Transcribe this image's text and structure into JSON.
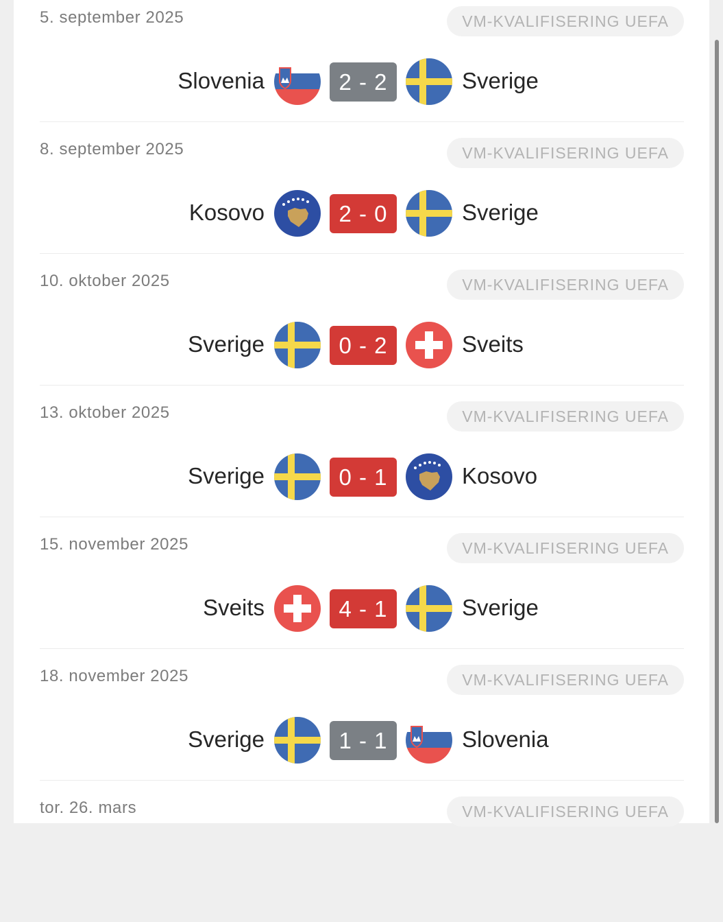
{
  "matches": [
    {
      "date": "5. september 2025",
      "competition": "VM-KVALIFISERING UEFA",
      "home": "Slovenia",
      "home_flag": "slovenia-flag-icon",
      "score": "2 - 2",
      "away": "Sverige",
      "away_flag": "sweden-flag-icon",
      "result_color": "#7b8085"
    },
    {
      "date": "8. september 2025",
      "competition": "VM-KVALIFISERING UEFA",
      "home": "Kosovo",
      "home_flag": "kosovo-flag-icon",
      "score": "2 - 0",
      "away": "Sverige",
      "away_flag": "sweden-flag-icon",
      "result_color": "#d33a36"
    },
    {
      "date": "10. oktober 2025",
      "competition": "VM-KVALIFISERING UEFA",
      "home": "Sverige",
      "home_flag": "sweden-flag-icon",
      "score": "0 - 2",
      "away": "Sveits",
      "away_flag": "switzerland-flag-icon",
      "result_color": "#d33a36"
    },
    {
      "date": "13. oktober 2025",
      "competition": "VM-KVALIFISERING UEFA",
      "home": "Sverige",
      "home_flag": "sweden-flag-icon",
      "score": "0 - 1",
      "away": "Kosovo",
      "away_flag": "kosovo-flag-icon",
      "result_color": "#d33a36"
    },
    {
      "date": "15. november 2025",
      "competition": "VM-KVALIFISERING UEFA",
      "home": "Sveits",
      "home_flag": "switzerland-flag-icon",
      "score": "4 - 1",
      "away": "Sverige",
      "away_flag": "sweden-flag-icon",
      "result_color": "#d33a36"
    },
    {
      "date": "18. november 2025",
      "competition": "VM-KVALIFISERING UEFA",
      "home": "Sverige",
      "home_flag": "sweden-flag-icon",
      "score": "1 - 1",
      "away": "Slovenia",
      "away_flag": "slovenia-flag-icon",
      "result_color": "#7b8085"
    },
    {
      "date": "tor. 26. mars",
      "competition": "VM-KVALIFISERING UEFA"
    }
  ],
  "colors": {
    "draw": "#7b8085",
    "loss": "#d33a36",
    "sweden_blue": "#3f6bb3",
    "sweden_yellow": "#f5d84a",
    "switzerland_red": "#e9524e",
    "kosovo_blue": "#2d4ea3",
    "kosovo_gold": "#c9a15a"
  }
}
